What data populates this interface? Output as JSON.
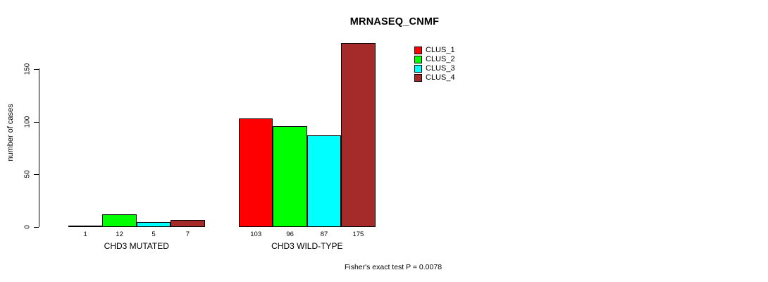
{
  "title": "MRNASEQ_CNMF",
  "footnote": "Fisher's exact test P = 0.0078",
  "chart_data": {
    "type": "bar",
    "title": "MRNASEQ_CNMF",
    "xlabel": "",
    "ylabel": "number of cases",
    "categories": [
      "CHD3 MUTATED",
      "CHD3 WILD-TYPE"
    ],
    "series": [
      {
        "name": "CLUS_1",
        "color": "#ff0000",
        "values": [
          1,
          103
        ]
      },
      {
        "name": "CLUS_2",
        "color": "#00ff00",
        "values": [
          12,
          96
        ]
      },
      {
        "name": "CLUS_3",
        "color": "#00ffff",
        "values": [
          5,
          87
        ]
      },
      {
        "name": "CLUS_4",
        "color": "#a52a2a",
        "values": [
          7,
          175
        ]
      }
    ],
    "bar_value_labels": [
      [
        1,
        12,
        5,
        7
      ],
      [
        103,
        96,
        87,
        175
      ]
    ],
    "yticks": [
      0,
      50,
      100,
      150
    ],
    "ylim": [
      0,
      175
    ],
    "grid": false,
    "legend_position": "top-right",
    "bar_border_color": "#000000",
    "annotation": "Fisher's exact test P = 0.0078"
  }
}
